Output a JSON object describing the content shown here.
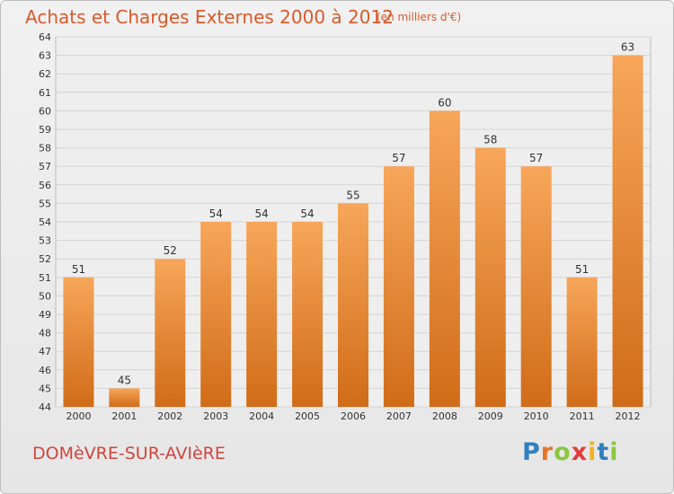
{
  "header": {
    "title": "Achats et Charges Externes 2000 à 2012",
    "unit": "(en milliers d'€)"
  },
  "footer": {
    "commune": "DOMèVRE-SUR-AVIèRE",
    "brand": {
      "text": "Proxiti",
      "letters": [
        {
          "ch": "P",
          "color": "#2f7fc1"
        },
        {
          "ch": "r",
          "color": "#e8742a"
        },
        {
          "ch": "o",
          "color": "#8cc63f"
        },
        {
          "ch": "x",
          "color": "#e23d3d"
        },
        {
          "ch": "i",
          "color": "#f0b323"
        },
        {
          "ch": "t",
          "color": "#2f7fc1"
        },
        {
          "ch": "i",
          "color": "#8cc63f"
        }
      ]
    }
  },
  "colors": {
    "bar_light": "#f7a65a",
    "bar_dark": "#d06c18",
    "title": "#d85a2a",
    "grid": "#d4d4d4",
    "axis_text": "#333333"
  },
  "chart_data": {
    "type": "bar",
    "categories": [
      "2000",
      "2001",
      "2002",
      "2003",
      "2004",
      "2005",
      "2006",
      "2007",
      "2008",
      "2009",
      "2010",
      "2011",
      "2012"
    ],
    "values": [
      51,
      45,
      52,
      54,
      54,
      54,
      55,
      57,
      60,
      58,
      57,
      51,
      63
    ],
    "data_labels": [
      "51",
      "45",
      "52",
      "54",
      "54",
      "54",
      "55",
      "57",
      "60",
      "58",
      "57",
      "51",
      "63"
    ],
    "y_ticks": [
      "44",
      "45",
      "46",
      "47",
      "48",
      "49",
      "50",
      "51",
      "52",
      "53",
      "54",
      "55",
      "56",
      "57",
      "58",
      "59",
      "60",
      "61",
      "62",
      "63",
      "64"
    ],
    "ylim": [
      44,
      64
    ],
    "grid": true,
    "legend": "none",
    "title": "Achats et Charges Externes 2000 à 2012",
    "xlabel": "",
    "ylabel": ""
  }
}
